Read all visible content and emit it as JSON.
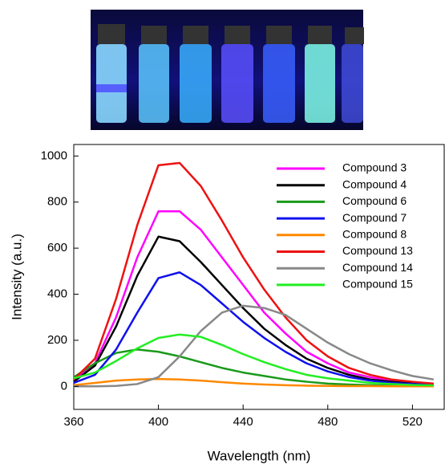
{
  "chart_data": {
    "type": "line",
    "xlabel": "Wavelength (nm)",
    "ylabel": "Intensity (a.u.)",
    "xlim": [
      360,
      535
    ],
    "ylim": [
      -100,
      1050
    ],
    "xticks": [
      360,
      400,
      440,
      480,
      520
    ],
    "yticks": [
      0,
      200,
      400,
      600,
      800,
      1000
    ],
    "legend": "upper right",
    "x": [
      360,
      370,
      380,
      390,
      400,
      410,
      420,
      430,
      440,
      450,
      460,
      470,
      480,
      490,
      500,
      510,
      520,
      530
    ],
    "series": [
      {
        "name": "Compound 3",
        "color": "#ff00ff",
        "values": [
          25,
          100,
          300,
          560,
          760,
          760,
          680,
          560,
          440,
          320,
          230,
          150,
          100,
          60,
          40,
          25,
          15,
          10
        ]
      },
      {
        "name": "Compound 4",
        "color": "#000000",
        "values": [
          20,
          90,
          260,
          480,
          650,
          630,
          540,
          440,
          340,
          250,
          180,
          120,
          80,
          50,
          30,
          20,
          12,
          8
        ]
      },
      {
        "name": "Compound 6",
        "color": "#1a9a1a",
        "values": [
          40,
          100,
          145,
          160,
          150,
          130,
          105,
          80,
          60,
          45,
          30,
          20,
          12,
          8,
          5,
          3,
          2,
          1
        ]
      },
      {
        "name": "Compound 7",
        "color": "#1010ee",
        "values": [
          15,
          50,
          160,
          320,
          470,
          495,
          440,
          360,
          280,
          210,
          150,
          100,
          65,
          40,
          25,
          15,
          10,
          6
        ]
      },
      {
        "name": "Compound 8",
        "color": "#ff8800",
        "values": [
          5,
          15,
          25,
          30,
          32,
          30,
          25,
          18,
          12,
          8,
          5,
          3,
          2,
          1,
          1,
          0,
          0,
          0
        ]
      },
      {
        "name": "Compound 13",
        "color": "#ee1111",
        "values": [
          30,
          120,
          380,
          700,
          960,
          970,
          870,
          720,
          560,
          420,
          300,
          200,
          130,
          80,
          50,
          30,
          20,
          12
        ]
      },
      {
        "name": "Compound 14",
        "color": "#888888",
        "values": [
          0,
          0,
          2,
          10,
          40,
          130,
          240,
          320,
          350,
          340,
          310,
          250,
          190,
          140,
          100,
          70,
          45,
          30
        ]
      },
      {
        "name": "Compound 15",
        "color": "#22ee22",
        "values": [
          35,
          60,
          110,
          165,
          210,
          225,
          215,
          180,
          140,
          105,
          75,
          50,
          35,
          25,
          15,
          10,
          6,
          4
        ]
      }
    ]
  }
}
